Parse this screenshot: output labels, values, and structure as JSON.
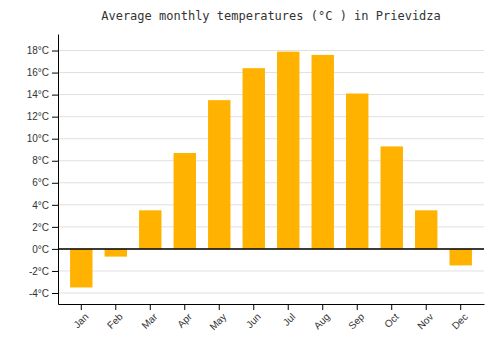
{
  "chart_data": {
    "type": "bar",
    "title": "Average monthly temperatures (°C ) in Prievidza",
    "categories": [
      "Jan",
      "Feb",
      "Mar",
      "Apr",
      "May",
      "Jun",
      "Jul",
      "Aug",
      "Sep",
      "Oct",
      "Nov",
      "Dec"
    ],
    "values": [
      -3.5,
      -0.7,
      3.5,
      8.7,
      13.5,
      16.4,
      17.9,
      17.6,
      14.1,
      9.3,
      3.5,
      -1.5
    ],
    "color": "#FFB300",
    "ylim": [
      -5,
      19.5
    ],
    "yticks": [
      {
        "value": -4,
        "label": "-4°C"
      },
      {
        "value": -2,
        "label": "-2°C"
      },
      {
        "value": 0,
        "label": "0°C"
      },
      {
        "value": 2,
        "label": "2°C"
      },
      {
        "value": 4,
        "label": "4°C"
      },
      {
        "value": 6,
        "label": "6°C"
      },
      {
        "value": 8,
        "label": "8°C"
      },
      {
        "value": 10,
        "label": "10°C"
      },
      {
        "value": 12,
        "label": "12°C"
      },
      {
        "value": 14,
        "label": "14°C"
      },
      {
        "value": 16,
        "label": "16°C"
      },
      {
        "value": 18,
        "label": "18°C"
      }
    ],
    "grid": true
  }
}
